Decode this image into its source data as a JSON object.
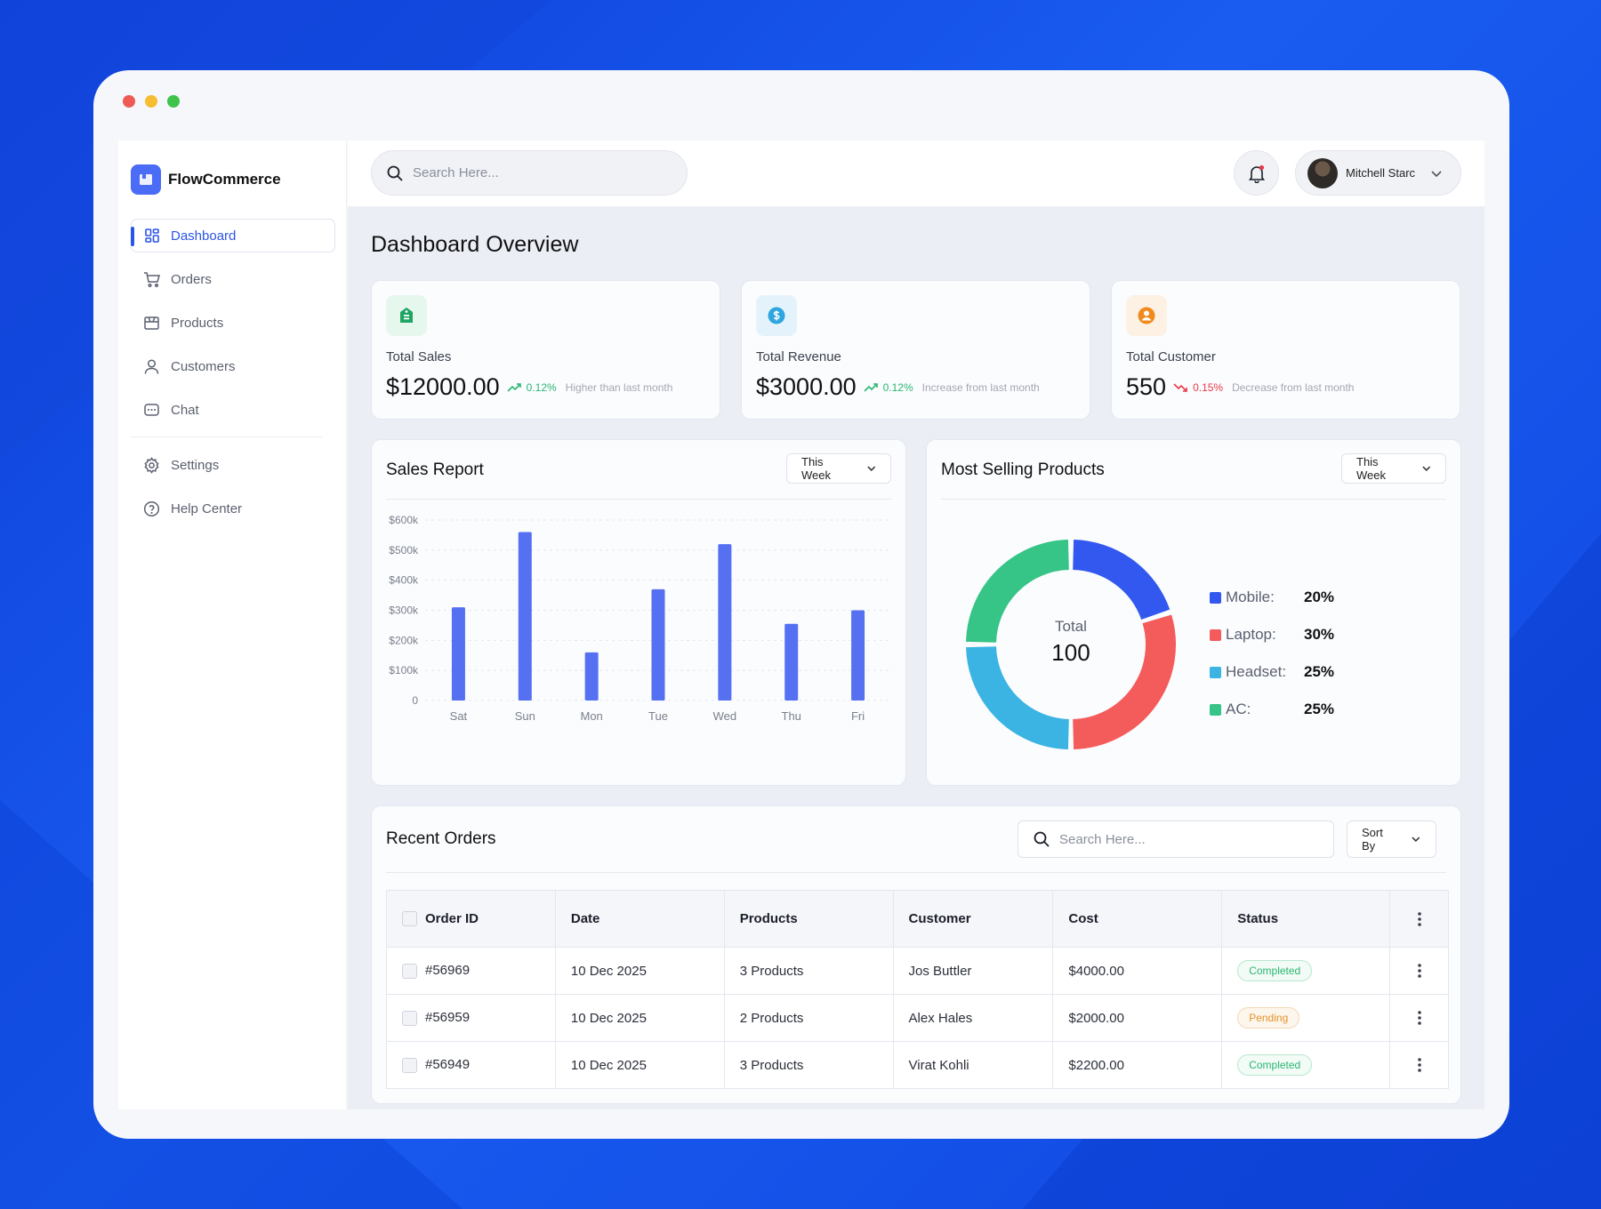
{
  "colors": {
    "background": "#1450e8",
    "accent": "#2b55e6",
    "bar": "#5571f1",
    "positive": "#2bb673",
    "negative": "#e8394a"
  },
  "brand": {
    "name": "FlowCommerce",
    "icon": "storefront-logo-icon"
  },
  "sidebar": {
    "items": [
      {
        "label": "Dashboard",
        "icon": "grid-icon",
        "active": true
      },
      {
        "label": "Orders",
        "icon": "cart-icon"
      },
      {
        "label": "Products",
        "icon": "box-icon"
      },
      {
        "label": "Customers",
        "icon": "user-icon"
      },
      {
        "label": "Chat",
        "icon": "chat-icon"
      },
      {
        "label": "Settings",
        "icon": "gear-icon"
      },
      {
        "label": "Help Center",
        "icon": "help-icon"
      }
    ]
  },
  "topbar": {
    "search_placeholder": "Search Here...",
    "user_name": "Mitchell Starc"
  },
  "page_title": "Dashboard Overview",
  "stats": [
    {
      "label": "Total Sales",
      "value": "$12000.00",
      "pct": "0.12%",
      "trend": "up",
      "note": "Higher than last month",
      "icon": "tag-icon"
    },
    {
      "label": "Total Revenue",
      "value": "$3000.00",
      "pct": "0.12%",
      "trend": "up",
      "note": "Increase from last month",
      "icon": "dollar-icon"
    },
    {
      "label": "Total Customer",
      "value": "550",
      "pct": "0.15%",
      "trend": "down",
      "note": "Decrease from last month",
      "icon": "customer-icon"
    }
  ],
  "sales_report": {
    "title": "Sales Report",
    "filter": "This Week"
  },
  "most_selling": {
    "title": "Most Selling Products",
    "filter": "This Week",
    "center_label": "Total",
    "center_value": "100"
  },
  "chart_data": [
    {
      "type": "bar",
      "categories": [
        "Sat",
        "Sun",
        "Mon",
        "Tue",
        "Wed",
        "Thu",
        "Fri"
      ],
      "values": [
        310,
        560,
        160,
        370,
        520,
        255,
        300
      ],
      "yticks": [
        "0",
        "$100k",
        "$200k",
        "$300k",
        "$400k",
        "$500k",
        "$600k"
      ],
      "ylim": [
        0,
        600
      ],
      "unit": "k",
      "grid": true
    },
    {
      "type": "pie",
      "categories": [
        "Mobile:",
        "Laptop:",
        "Headset:",
        "AC:"
      ],
      "values": [
        20,
        30,
        25,
        25
      ],
      "labels": [
        "20%",
        "30%",
        "25%",
        "25%"
      ],
      "colors": [
        "#3258f0",
        "#f45b5b",
        "#3bb4e4",
        "#36c487"
      ]
    }
  ],
  "recent_orders": {
    "title": "Recent Orders",
    "search_placeholder": "Search Here...",
    "sort_label": "Sort By",
    "columns": [
      "Order ID",
      "Date",
      "Products",
      "Customer",
      "Cost",
      "Status"
    ],
    "rows": [
      {
        "id": "#56969",
        "date": "10 Dec 2025",
        "products": "3 Products",
        "customer": "Jos Buttler",
        "cost": "$4000.00",
        "status": "Completed"
      },
      {
        "id": "#56959",
        "date": "10 Dec 2025",
        "products": "2 Products",
        "customer": "Alex Hales",
        "cost": "$2000.00",
        "status": "Pending"
      },
      {
        "id": "#56949",
        "date": "10 Dec 2025",
        "products": "3 Products",
        "customer": "Virat Kohli",
        "cost": "$2200.00",
        "status": "Completed"
      }
    ]
  }
}
